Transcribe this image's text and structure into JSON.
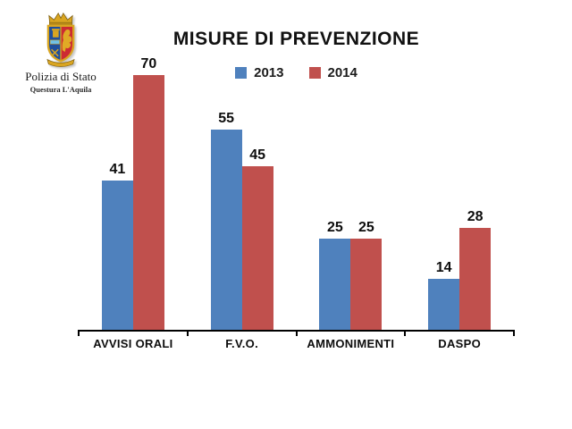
{
  "logo": {
    "title": "Polizia di Stato",
    "subtitle": "Questura L'Aquila",
    "crest_icon": "polizia-di-stato-crest"
  },
  "chart_data": {
    "type": "bar",
    "title": "MISURE DI PREVENZIONE",
    "categories": [
      "AVVISI ORALI",
      "F.V.O.",
      "AMMONIMENTI",
      "DASPO"
    ],
    "series": [
      {
        "name": "2013",
        "color": "#4f81bd",
        "values": [
          41,
          55,
          25,
          14
        ]
      },
      {
        "name": "2014",
        "color": "#c0504d",
        "values": [
          70,
          45,
          25,
          28
        ]
      }
    ],
    "xlabel": "",
    "ylabel": "",
    "ylim": [
      0,
      70
    ],
    "grid": false,
    "value_labels": true,
    "legend_position": "top-center"
  },
  "colors": {
    "background": "#ffffff",
    "axis": "#000000",
    "text": "#0d0d0d"
  }
}
